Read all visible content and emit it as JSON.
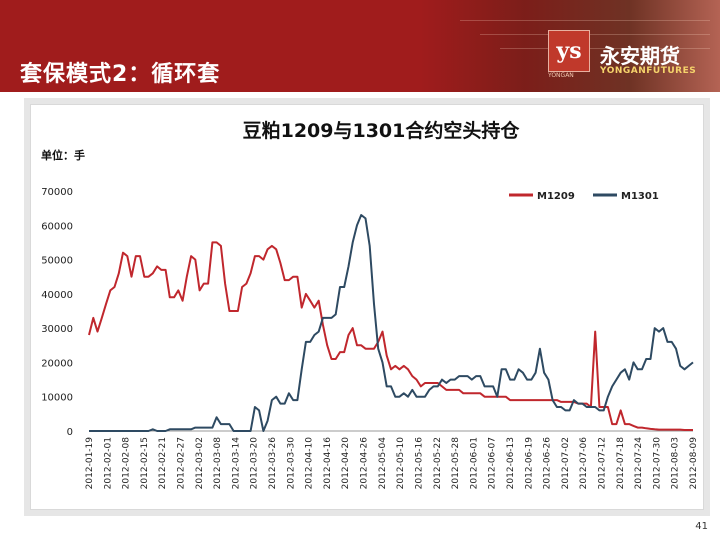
{
  "slide": {
    "title": "套保模式2：循环套",
    "page_number": "41"
  },
  "logo": {
    "mark": "ys",
    "name": "永安期货",
    "sub": "YONGANFUTURES",
    "small": "YONGAN"
  },
  "colors": {
    "header": "#a01c1c",
    "series_m1209": "#c0272d",
    "series_m1301": "#2e4a62"
  },
  "chart_data": {
    "type": "line",
    "title": "豆粕1209与1301合约空头持仓",
    "unit_label": "单位：手",
    "ylim": [
      0,
      70000
    ],
    "yticks": [
      0,
      10000,
      20000,
      30000,
      40000,
      50000,
      60000,
      70000
    ],
    "ytick_labels": [
      "0",
      "10000",
      "20000",
      "30000",
      "40000",
      "50000",
      "60000",
      "70000"
    ],
    "xtick_labels": [
      "2012-01-19",
      "2012-02-01",
      "2012-02-08",
      "2012-02-15",
      "2012-02-21",
      "2012-02-27",
      "2012-03-02",
      "2012-03-08",
      "2012-03-14",
      "2012-03-20",
      "2012-03-26",
      "2012-03-30",
      "2012-04-10",
      "2012-04-16",
      "2012-04-20",
      "2012-04-26",
      "2012-05-04",
      "2012-05-10",
      "2012-05-16",
      "2012-05-22",
      "2012-05-28",
      "2012-06-01",
      "2012-06-07",
      "2012-06-13",
      "2012-06-19",
      "2012-06-26",
      "2012-07-02",
      "2012-07-06",
      "2012-07-12",
      "2012-07-18",
      "2012-07-24",
      "2012-07-30",
      "2012-08-03",
      "2012-08-09"
    ],
    "legend_position": "top-right",
    "grid": false,
    "series": [
      {
        "name": "M1209",
        "color": "#c0272d",
        "values": [
          28000,
          33000,
          29000,
          33000,
          37000,
          41000,
          42000,
          46000,
          52000,
          51000,
          45000,
          51000,
          51000,
          45000,
          45000,
          46000,
          48000,
          47000,
          47000,
          39000,
          39000,
          41000,
          38000,
          45000,
          51000,
          50000,
          41000,
          43000,
          43000,
          55000,
          55000,
          54000,
          43000,
          35000,
          35000,
          35000,
          42000,
          43000,
          46000,
          51000,
          51000,
          50000,
          53000,
          54000,
          53000,
          49000,
          44000,
          44000,
          45000,
          45000,
          36000,
          40000,
          38000,
          36000,
          38000,
          31000,
          25000,
          21000,
          21000,
          23000,
          23000,
          28000,
          30000,
          25000,
          25000,
          24000,
          24000,
          24000,
          26000,
          29000,
          22000,
          18000,
          19000,
          18000,
          19000,
          18000,
          16000,
          15000,
          13000,
          14000,
          14000,
          14000,
          14000,
          13000,
          12000,
          12000,
          12000,
          12000,
          11000,
          11000,
          11000,
          11000,
          11000,
          10000,
          10000,
          10000,
          10000,
          10000,
          10000,
          9000,
          9000,
          9000,
          9000,
          9000,
          9000,
          9000,
          9000,
          9000,
          9000,
          9000,
          9000,
          8500,
          8500,
          8500,
          8500,
          8000,
          8000,
          8000,
          7000,
          29000,
          7000,
          7000,
          7000,
          2000,
          2000,
          6000,
          2000,
          2000,
          1500,
          1000,
          1000,
          800,
          600,
          500,
          400,
          400,
          400,
          400,
          400,
          400,
          300,
          300,
          300
        ]
      },
      {
        "name": "M1301",
        "color": "#2e4a62",
        "values": [
          0,
          0,
          0,
          0,
          0,
          0,
          0,
          0,
          0,
          0,
          0,
          0,
          0,
          0,
          0,
          500,
          0,
          0,
          0,
          500,
          500,
          500,
          500,
          500,
          500,
          1000,
          1000,
          1000,
          1000,
          1000,
          4000,
          2000,
          2000,
          2000,
          0,
          0,
          0,
          0,
          0,
          7000,
          6000,
          0,
          3000,
          9000,
          10000,
          8000,
          8000,
          11000,
          9000,
          9000,
          18000,
          26000,
          26000,
          28000,
          29000,
          33000,
          33000,
          33000,
          34000,
          42000,
          42000,
          48000,
          55000,
          60000,
          63000,
          62000,
          54000,
          37000,
          24000,
          20000,
          13000,
          13000,
          10000,
          10000,
          11000,
          10000,
          12000,
          10000,
          10000,
          10000,
          12000,
          13000,
          13000,
          15000,
          14000,
          15000,
          15000,
          16000,
          16000,
          16000,
          15000,
          16000,
          16000,
          13000,
          13000,
          13000,
          10000,
          18000,
          18000,
          15000,
          15000,
          18000,
          17000,
          15000,
          15000,
          17000,
          24000,
          17000,
          15000,
          9000,
          7000,
          7000,
          6000,
          6000,
          9000,
          8000,
          8000,
          7000,
          7000,
          7000,
          6000,
          6000,
          10000,
          13000,
          15000,
          17000,
          18000,
          15000,
          20000,
          18000,
          18000,
          21000,
          21000,
          30000,
          29000,
          30000,
          26000,
          26000,
          24000,
          19000,
          18000,
          19000,
          20000
        ]
      }
    ]
  }
}
